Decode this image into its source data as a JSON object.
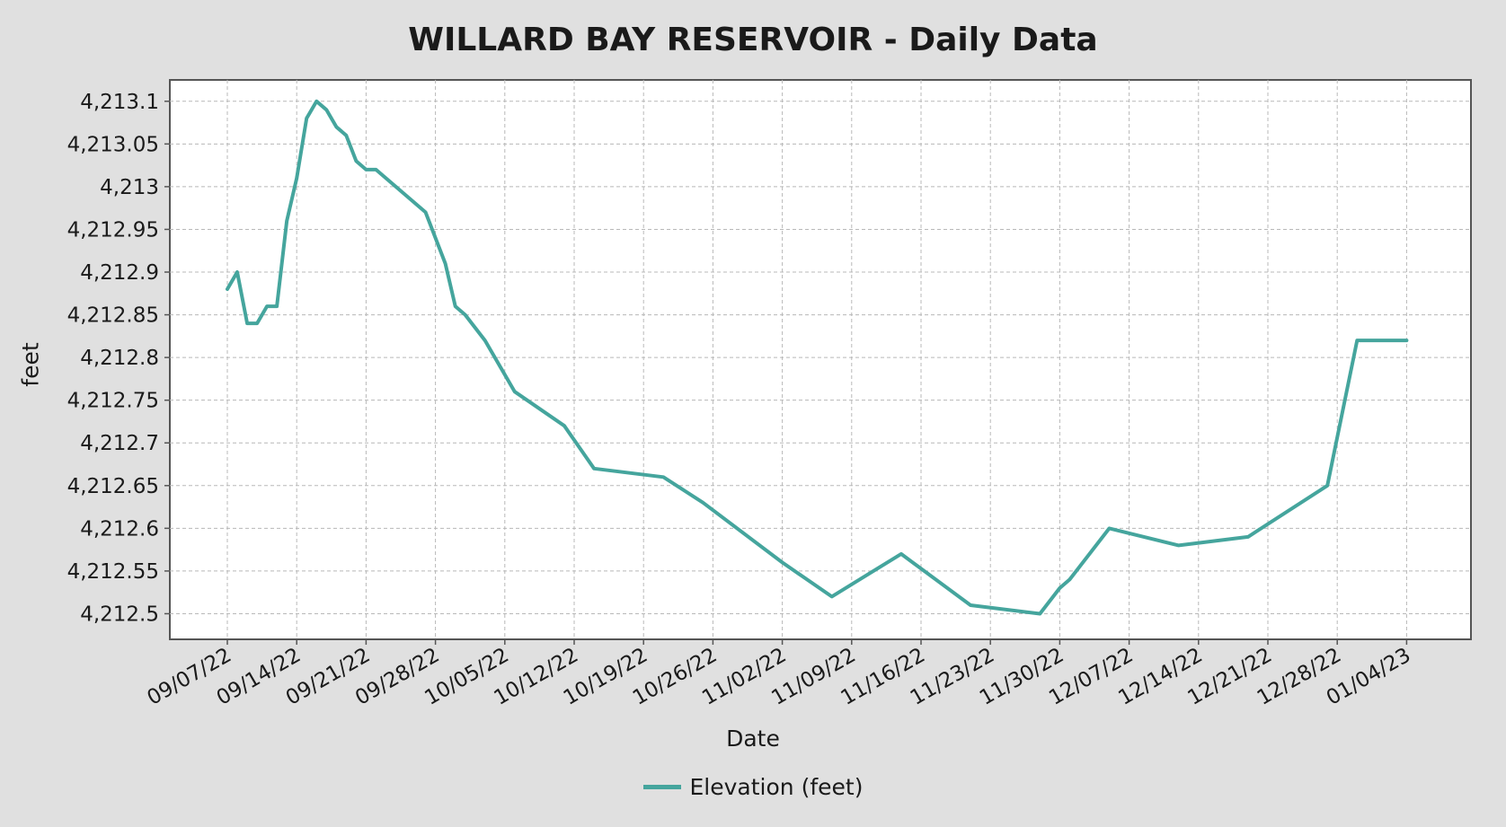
{
  "chart_data": {
    "type": "line",
    "title": "WILLARD BAY RESERVOIR - Daily Data",
    "xlabel": "Date",
    "ylabel": "feet",
    "grid": true,
    "legend_position": "bottom",
    "ylim": [
      4212.47,
      4213.125
    ],
    "y_ticks": [
      "4,212.5",
      "4,212.55",
      "4,212.6",
      "4,212.65",
      "4,212.7",
      "4,212.75",
      "4,212.8",
      "4,212.85",
      "4,212.9",
      "4,212.95",
      "4,213",
      "4,213.05",
      "4,213.1"
    ],
    "x_ticks": [
      "09/07/22",
      "09/14/22",
      "09/21/22",
      "09/28/22",
      "10/05/22",
      "10/12/22",
      "10/19/22",
      "10/26/22",
      "11/02/22",
      "11/09/22",
      "11/16/22",
      "11/23/22",
      "11/30/22",
      "12/07/22",
      "12/14/22",
      "12/21/22",
      "12/28/22",
      "01/04/23"
    ],
    "series": [
      {
        "name": "Elevation (feet)",
        "color": "#45a59d",
        "points": [
          [
            "09/07/22",
            4212.88
          ],
          [
            "09/08/22",
            4212.9
          ],
          [
            "09/09/22",
            4212.84
          ],
          [
            "09/10/22",
            4212.84
          ],
          [
            "09/11/22",
            4212.86
          ],
          [
            "09/12/22",
            4212.86
          ],
          [
            "09/13/22",
            4212.96
          ],
          [
            "09/14/22",
            4213.01
          ],
          [
            "09/15/22",
            4213.08
          ],
          [
            "09/16/22",
            4213.1
          ],
          [
            "09/17/22",
            4213.09
          ],
          [
            "09/18/22",
            4213.07
          ],
          [
            "09/19/22",
            4213.06
          ],
          [
            "09/20/22",
            4213.03
          ],
          [
            "09/21/22",
            4213.02
          ],
          [
            "09/22/22",
            4213.02
          ],
          [
            "09/27/22",
            4212.97
          ],
          [
            "09/29/22",
            4212.91
          ],
          [
            "09/30/22",
            4212.86
          ],
          [
            "10/01/22",
            4212.85
          ],
          [
            "10/03/22",
            4212.82
          ],
          [
            "10/06/22",
            4212.76
          ],
          [
            "10/11/22",
            4212.72
          ],
          [
            "10/14/22",
            4212.67
          ],
          [
            "10/21/22",
            4212.66
          ],
          [
            "10/25/22",
            4212.63
          ],
          [
            "11/02/22",
            4212.56
          ],
          [
            "11/07/22",
            4212.52
          ],
          [
            "11/14/22",
            4212.57
          ],
          [
            "11/21/22",
            4212.51
          ],
          [
            "11/28/22",
            4212.5
          ],
          [
            "11/30/22",
            4212.53
          ],
          [
            "12/01/22",
            4212.54
          ],
          [
            "12/05/22",
            4212.6
          ],
          [
            "12/12/22",
            4212.58
          ],
          [
            "12/19/22",
            4212.59
          ],
          [
            "12/27/22",
            4212.65
          ],
          [
            "12/30/22",
            4212.82
          ],
          [
            "01/04/23",
            4212.82
          ]
        ]
      }
    ]
  }
}
